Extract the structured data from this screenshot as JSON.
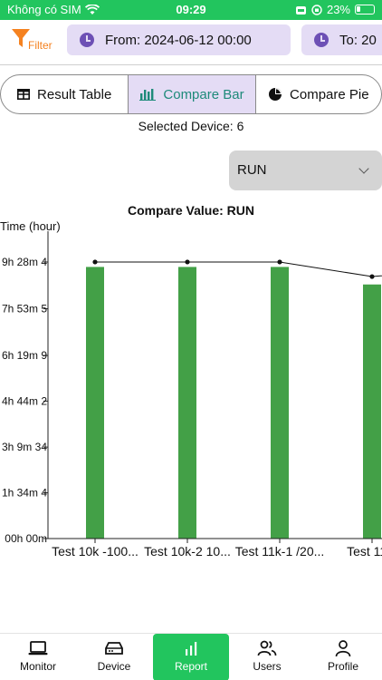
{
  "status_bar": {
    "carrier": "Không có SIM",
    "time": "09:29",
    "battery": "23%",
    "battery_level": 0.23
  },
  "filter_bar": {
    "filter_label": "Filter",
    "from_label": "From: 2024-06-12 00:00",
    "to_label": "To: 20"
  },
  "view_tabs": [
    {
      "label": "Result Table",
      "icon": "table-icon",
      "active": false
    },
    {
      "label": "Compare Bar",
      "icon": "bar-chart-icon",
      "active": true
    },
    {
      "label": "Compare Pie",
      "icon": "pie-chart-icon",
      "active": false
    }
  ],
  "selected_device": "Selected Device: 6",
  "metric_select": {
    "value": "RUN",
    "icon": "chevron-down-icon"
  },
  "colors": {
    "brand": "#22c55e",
    "bar": "#43a047",
    "accent_purple": "#e4dcf5",
    "filter_orange": "#f58220"
  },
  "chart_data": {
    "type": "bar",
    "title": "Compare Value: RUN",
    "ylabel": "Time (hour)",
    "y_ticks": [
      "00h 00m",
      "1h 34m 4",
      "3h 9m 34",
      "4h 44m 2",
      "6h 19m 9",
      "7h 53m 5",
      "9h 28m 4"
    ],
    "y_tick_values": [
      0,
      1.5683,
      3.1317,
      4.7067,
      6.2683,
      7.8683,
      9.4683
    ],
    "ylim": [
      0,
      9.4683
    ],
    "categories": [
      "Test 10k -100...",
      "Test 10k-2 10...",
      "Test 11k-1 /20...",
      "Test 11k-"
    ],
    "values": [
      9.3,
      9.3,
      9.3,
      8.7
    ],
    "line_values": [
      9.47,
      9.47,
      9.47,
      8.97
    ],
    "grid": false,
    "legend": "none"
  },
  "tab_bar": [
    {
      "label": "Monitor",
      "icon": "monitor-icon",
      "active": false
    },
    {
      "label": "Device",
      "icon": "device-icon",
      "active": false
    },
    {
      "label": "Report",
      "icon": "report-icon",
      "active": true
    },
    {
      "label": "Users",
      "icon": "users-icon",
      "active": false
    },
    {
      "label": "Profile",
      "icon": "profile-icon",
      "active": false
    }
  ]
}
